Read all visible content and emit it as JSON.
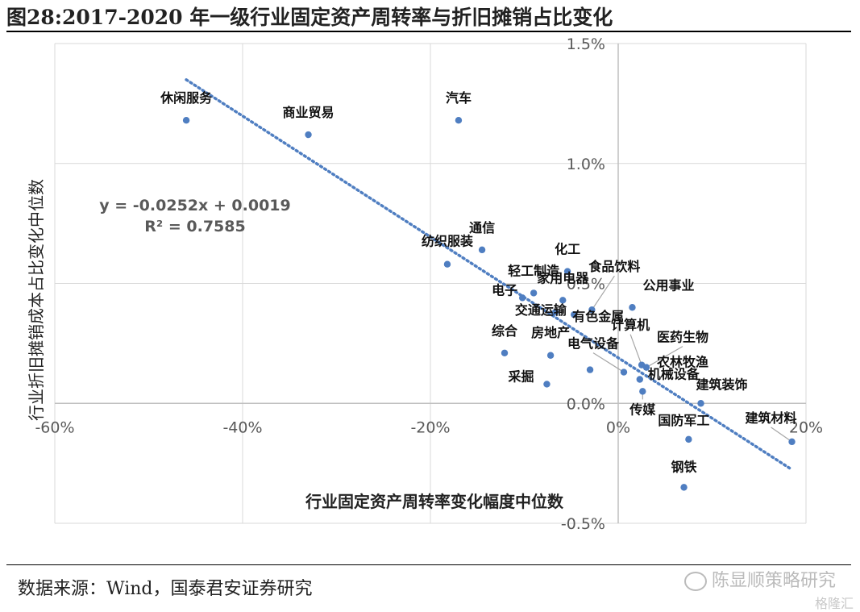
{
  "title": "图28:2017-2020 年一级行业固定资产周转率与折旧摊销占比变化",
  "source": "数据来源：Wind，国泰君安证券研究",
  "watermark": "陈显顺策略研究",
  "logo_text": "格隆汇",
  "chart_data": {
    "type": "scatter",
    "xlabel": "行业固定资产周转率变化幅度中位数",
    "ylabel": "行业折旧摊销成本占比变化中位数",
    "xlim": [
      -0.6,
      0.2
    ],
    "ylim": [
      -0.005,
      0.015
    ],
    "x_ticks": [
      -0.6,
      -0.4,
      -0.2,
      0,
      0.2
    ],
    "x_tick_labels": [
      "-60%",
      "-40%",
      "-20%",
      "0%",
      "20%"
    ],
    "y_ticks": [
      -0.005,
      0,
      0.005,
      0.01,
      0.015
    ],
    "y_tick_labels": [
      "-0.5%",
      "0.0%",
      "0.5%",
      "1.0%",
      "1.5%"
    ],
    "grid": true,
    "point_color": "#4f7ec1",
    "trend_color": "#4f7ec1",
    "trendline": {
      "slope": -0.0252,
      "intercept": 0.0019,
      "x_range": [
        -0.46,
        0.185
      ],
      "equation": "y = -0.0252x + 0.0019",
      "r2": "R² = 0.7585"
    },
    "points": [
      {
        "label": "休闲服务",
        "x": -0.46,
        "y": 0.0118
      },
      {
        "label": "商业贸易",
        "x": -0.33,
        "y": 0.0112
      },
      {
        "label": "汽车",
        "x": -0.17,
        "y": 0.0118
      },
      {
        "label": "通信",
        "x": -0.145,
        "y": 0.0064
      },
      {
        "label": "纺织服装",
        "x": -0.182,
        "y": 0.0058
      },
      {
        "label": "化工",
        "x": -0.054,
        "y": 0.0055
      },
      {
        "label": "食品饮料",
        "x": -0.028,
        "y": 0.0039
      },
      {
        "label": "轻工制造",
        "x": -0.09,
        "y": 0.0046
      },
      {
        "label": "电子",
        "x": -0.102,
        "y": 0.0044
      },
      {
        "label": "家用电器",
        "x": -0.059,
        "y": 0.0043
      },
      {
        "label": "交通运输",
        "x": -0.067,
        "y": 0.0038
      },
      {
        "label": "公用事业",
        "x": 0.015,
        "y": 0.004
      },
      {
        "label": "综合",
        "x": -0.121,
        "y": 0.0021
      },
      {
        "label": "房地产",
        "x": -0.072,
        "y": 0.002
      },
      {
        "label": "计算机",
        "x": 0.025,
        "y": 0.0016
      },
      {
        "label": "医药生物",
        "x": 0.03,
        "y": 0.0015
      },
      {
        "label": "电气设备",
        "x": 0.006,
        "y": 0.0013
      },
      {
        "label": "农林牧渔",
        "x": -0.03,
        "y": 0.0014
      },
      {
        "label": "采掘",
        "x": -0.076,
        "y": 0.0008
      },
      {
        "label": "有色金属",
        "x": -0.047,
        "y": 0.0037
      },
      {
        "label": "机械设备",
        "x": 0.023,
        "y": 0.001
      },
      {
        "label": "建筑装饰",
        "x": 0.088,
        "y": 0.0
      },
      {
        "label": "传媒",
        "x": 0.026,
        "y": 0.0005
      },
      {
        "label": "国防军工",
        "x": 0.075,
        "y": -0.0015
      },
      {
        "label": "建筑材料",
        "x": 0.185,
        "y": -0.0016
      },
      {
        "label": "钢铁",
        "x": 0.07,
        "y": -0.0035
      }
    ]
  }
}
